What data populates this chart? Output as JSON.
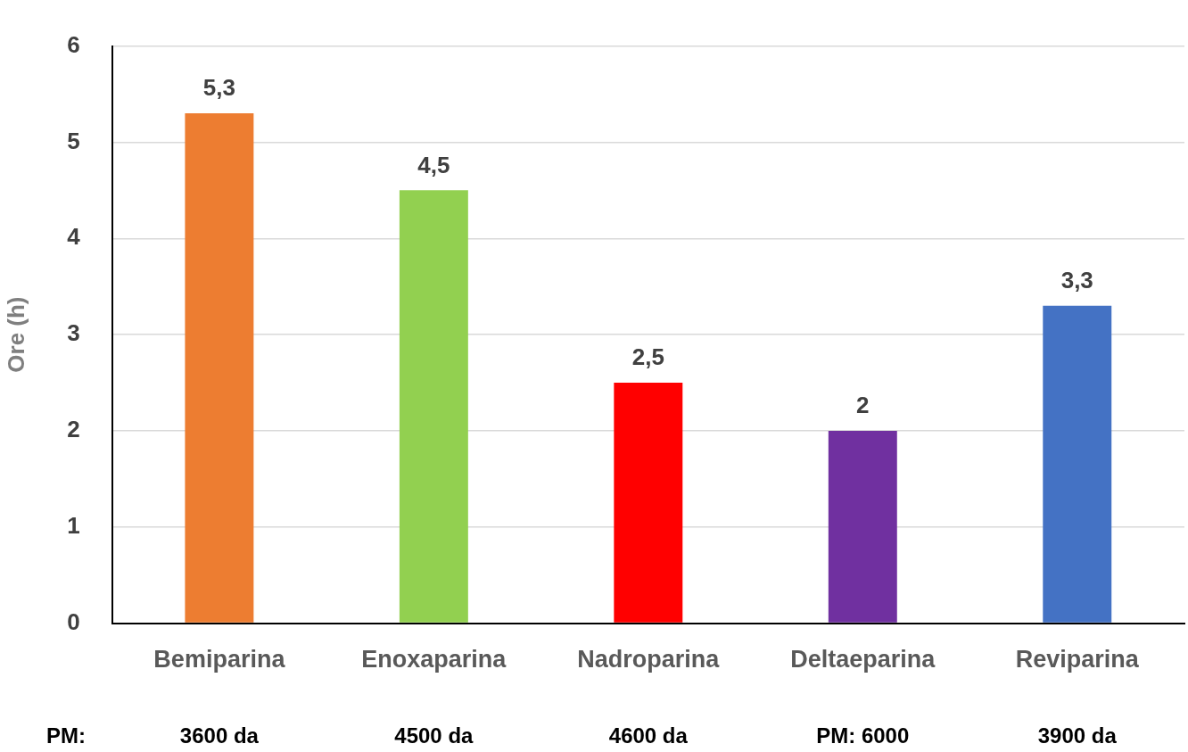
{
  "chart_data": {
    "type": "bar",
    "ylabel": "Ore (h)",
    "categories": [
      "Bemiparina",
      "Enoxaparina",
      "Nadroparina",
      "Deltaeparina",
      "Reviparina"
    ],
    "values": [
      5.3,
      4.5,
      2.5,
      2,
      3.3
    ],
    "colors": [
      "#ed7d31",
      "#92d050",
      "#ff0000",
      "#7030a0",
      "#4472c4"
    ],
    "value_labels": [
      "5,3",
      "4,5",
      "2,5",
      "2",
      "3,3"
    ],
    "ylim": [
      0,
      6
    ],
    "yticks": [
      0,
      1,
      2,
      3,
      4,
      5,
      6
    ],
    "grid": "y",
    "legend": false,
    "annotations": [
      "PM:",
      "3600 da",
      "4500 da",
      "4600 da",
      "PM: 6000",
      "3900 da"
    ]
  }
}
